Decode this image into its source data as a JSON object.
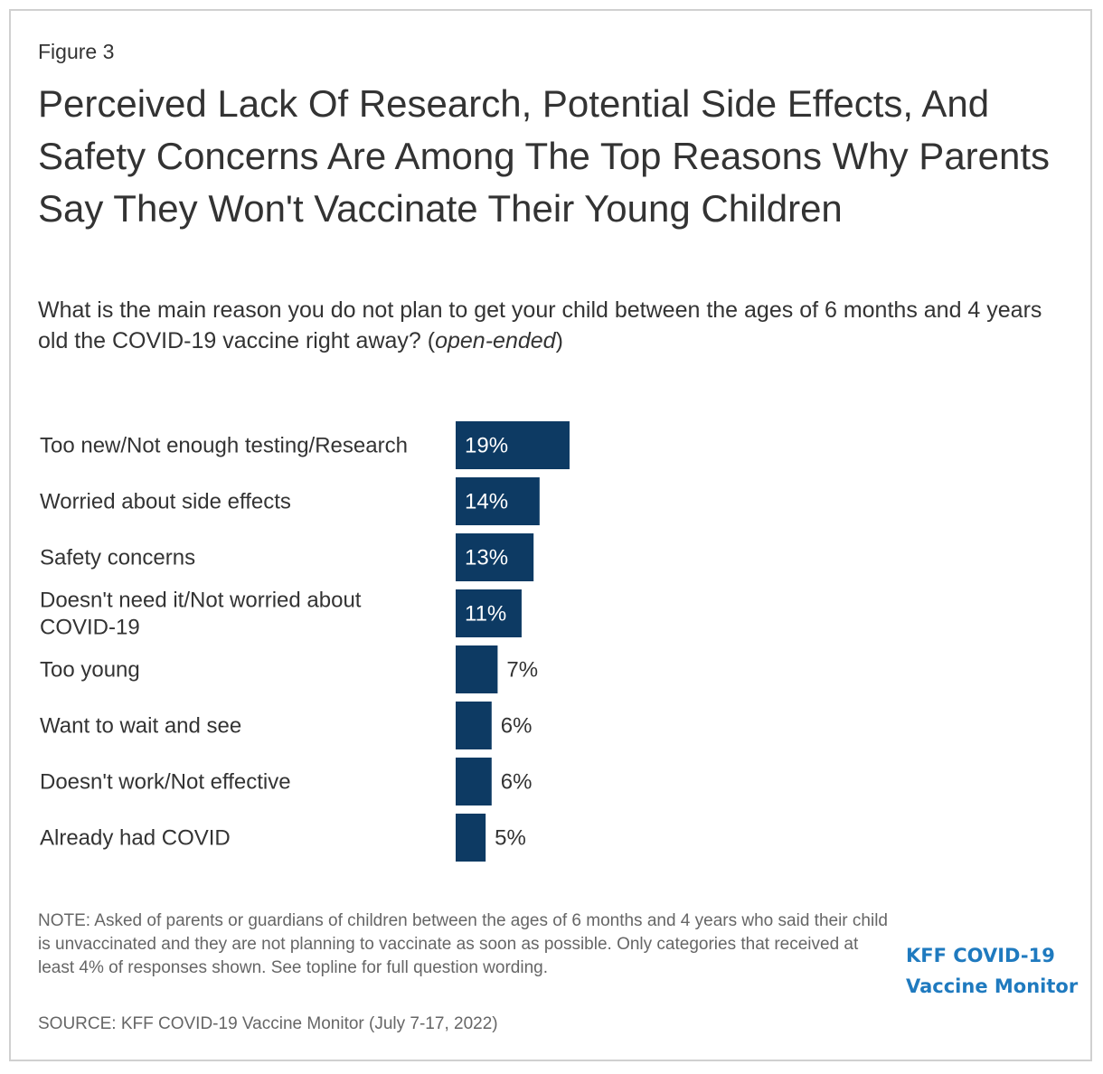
{
  "figure_label": "Figure 3",
  "title": "Perceived Lack Of Research, Potential Side Effects, And Safety Concerns Are Among The Top Reasons Why Parents Say They Won't Vaccinate Their Young Children",
  "subtitle": {
    "text": "What is the main reason you do not plan to get your child between the ages of 6 months and 4 years old the COVID-19 vaccine right away? ",
    "italic": "open-ended"
  },
  "chart_data": {
    "type": "bar",
    "orientation": "horizontal",
    "categories": [
      [
        "Too new/Not enough testing/Research"
      ],
      [
        "Worried about side effects"
      ],
      [
        "Safety concerns"
      ],
      [
        "Doesn't need it/Not worried about",
        "COVID-19"
      ],
      [
        "Too young"
      ],
      [
        "Want to wait and see"
      ],
      [
        "Doesn't work/Not effective"
      ],
      [
        "Already had COVID"
      ]
    ],
    "values": [
      19,
      14,
      13,
      11,
      7,
      6,
      6,
      5
    ],
    "value_labels": [
      "19%",
      "14%",
      "13%",
      "11%",
      "7%",
      "6%",
      "6%",
      "5%"
    ],
    "unit": "%",
    "bar_color": "#0d3a63",
    "inside_label_color": "#ffffff",
    "outside_label_color": "#333333",
    "category_label_color": "#333333",
    "grid": false,
    "legend": "none"
  },
  "note": "NOTE: Asked of parents or guardians of children between the ages of 6 months and 4 years who said their child is unvaccinated and they are not planning to vaccinate as soon as possible. Only categories that received at least 4% of responses shown. See topline for full question wording.",
  "source": "SOURCE: KFF COVID-19 Vaccine Monitor (July 7-17, 2022)",
  "logo": {
    "line1": "KFF COVID-19",
    "line2": "Vaccine Monitor",
    "color": "#1f7abf"
  }
}
